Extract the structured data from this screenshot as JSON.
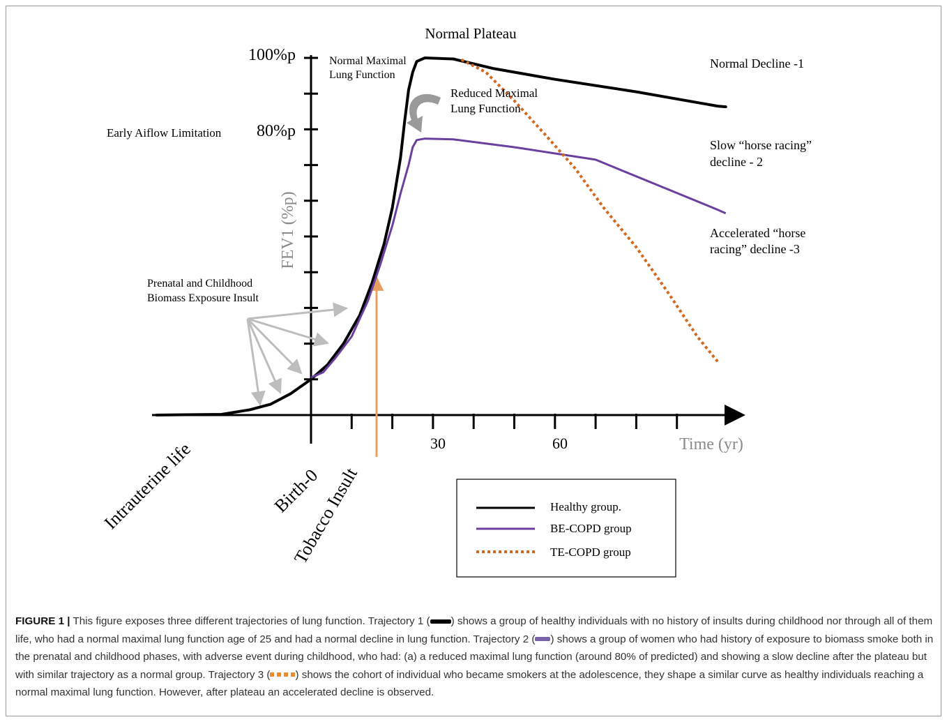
{
  "chart_data": {
    "type": "line",
    "x_axis_label": "Time (yr)",
    "y_axis_label": "FEV1 (%p)",
    "x_ticks": [
      {
        "x": 30,
        "label": "30"
      },
      {
        "x": 60,
        "label": "60"
      }
    ],
    "y_ticks": [
      {
        "y": 100,
        "label": "100%p"
      },
      {
        "y": 80,
        "label": "80%p"
      }
    ],
    "x_range": [
      -40,
      105
    ],
    "y_range": [
      0,
      100
    ],
    "series": [
      {
        "name": "Healthy group.",
        "color": "#000000",
        "style": "solid",
        "points": [
          [
            -38,
            0
          ],
          [
            -22,
            0.2
          ],
          [
            -15,
            1.5
          ],
          [
            -10,
            3
          ],
          [
            -5,
            6
          ],
          [
            0,
            10
          ],
          [
            4,
            14
          ],
          [
            8,
            20
          ],
          [
            12,
            28
          ],
          [
            15,
            37
          ],
          [
            18,
            48
          ],
          [
            20,
            58
          ],
          [
            22,
            72
          ],
          [
            23,
            82
          ],
          [
            24,
            91
          ],
          [
            25,
            96
          ],
          [
            26,
            99
          ],
          [
            28,
            100
          ],
          [
            35,
            99.7
          ],
          [
            45,
            97
          ],
          [
            60,
            94
          ],
          [
            80,
            90.5
          ],
          [
            100,
            86.5
          ],
          [
            102,
            86.3
          ]
        ]
      },
      {
        "name": "BE-COPD group",
        "color": "#6a3fa0",
        "style": "solid",
        "points": [
          [
            0,
            10.5
          ],
          [
            3,
            12
          ],
          [
            6,
            16
          ],
          [
            10,
            22
          ],
          [
            14,
            32
          ],
          [
            17,
            42
          ],
          [
            20,
            53
          ],
          [
            22,
            62
          ],
          [
            24,
            70
          ],
          [
            25,
            75
          ],
          [
            26,
            77
          ],
          [
            28,
            77.4
          ],
          [
            35,
            77.2
          ],
          [
            50,
            75
          ],
          [
            70,
            71.5
          ],
          [
            100,
            57.5
          ],
          [
            102,
            56.5
          ]
        ]
      },
      {
        "name": "TE-COPD group",
        "color": "#d2691e",
        "style": "dotted",
        "points": [
          [
            37,
            99.5
          ],
          [
            43,
            96
          ],
          [
            50,
            88
          ],
          [
            58,
            78
          ],
          [
            65,
            69
          ],
          [
            72,
            58
          ],
          [
            80,
            47
          ],
          [
            88,
            34
          ],
          [
            95,
            22
          ],
          [
            100,
            15
          ]
        ]
      }
    ],
    "annotations": [
      "Normal Plateau",
      "Normal Maximal",
      "Lung Function",
      "Reduced Maximal",
      "Lung Function",
      "Normal Decline -1",
      "Slow “horse racing”",
      "decline  - 2",
      "Accelerated  “horse",
      "racing”  decline -3",
      "Early Aiflow Limitation",
      "Prenatal and Childhood",
      "Biomass Exposure Insult",
      "Intrauterine life",
      "Birth-0",
      "Tobacco Insult"
    ],
    "legend_title": "",
    "legend_position": "bottom-right"
  },
  "caption": {
    "label": "FIGURE 1 |",
    "part1": " This figure exposes three different trajectories of lung function. Trajectory 1 (",
    "part2": ") shows a group of healthy individuals with no history of insults during childhood nor through all of them life, who had a normal maximal lung function age of 25 and had a normal decline in lung function. Trajectory 2 (",
    "part3": ") shows a group of women who had history of exposure to biomass smoke both in the prenatal and childhood phases, with adverse event during childhood, who had: (a) a reduced maximal lung function (around 80% of predicted) and showing a slow decline after the plateau but with similar trajectory as a normal group. Trajectory 3 (",
    "part4": ") shows the cohort of individual who became smokers at the adolescence, they shape a similar curve as healthy individuals reaching a normal maximal lung function. However, after plateau an accelerated decline is observed."
  }
}
